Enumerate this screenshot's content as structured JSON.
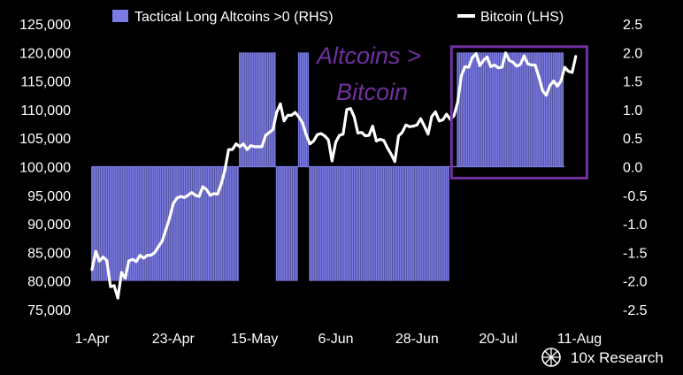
{
  "chart_data": {
    "type": "bar",
    "x_tick_labels": [
      "1-Apr",
      "23-Apr",
      "15-May",
      "6-Jun",
      "28-Jun",
      "20-Jul",
      "11-Aug"
    ],
    "x_range": [
      "2025-04-01",
      "2025-08-11"
    ],
    "y_left": {
      "ticks": [
        "125,000",
        "120,000",
        "115,000",
        "110,000",
        "105,000",
        "100,000",
        "95,000",
        "90,000",
        "85,000",
        "80,000",
        "75,000"
      ],
      "range": [
        75000,
        125000
      ]
    },
    "y_right": {
      "ticks": [
        "2.5",
        "2.0",
        "1.5",
        "1.0",
        "0.5",
        "0.0",
        "-0.5",
        "-1.0",
        "-1.5",
        "-2.0",
        "-2.5"
      ],
      "range": [
        -2.5,
        2.5
      ]
    },
    "legend_position": "top",
    "grid": false,
    "annotation": {
      "line1": "Altcoins >",
      "line2": "Bitcoin",
      "color": "#7030a0"
    },
    "series": [
      {
        "name": "Tactical Long Altcoins >0 (RHS)",
        "type": "bar",
        "axis": "right",
        "color": "#7b7be6",
        "segments": [
          {
            "start": "2025-04-01",
            "end": "2025-05-11",
            "value": -2.0
          },
          {
            "start": "2025-05-11",
            "end": "2025-05-21",
            "value": 2.0
          },
          {
            "start": "2025-05-21",
            "end": "2025-05-27",
            "value": -2.0
          },
          {
            "start": "2025-05-27",
            "end": "2025-05-30",
            "value": 2.0
          },
          {
            "start": "2025-05-30",
            "end": "2025-07-07",
            "value": -2.0
          },
          {
            "start": "2025-07-09",
            "end": "2025-08-07",
            "value": 2.0
          }
        ]
      },
      {
        "name": "Bitcoin (LHS)",
        "type": "line",
        "axis": "left",
        "color": "#ffffff",
        "points": [
          [
            "2025-04-01",
            82000
          ],
          [
            "2025-04-02",
            85200
          ],
          [
            "2025-04-03",
            83500
          ],
          [
            "2025-04-04",
            84200
          ],
          [
            "2025-04-05",
            83600
          ],
          [
            "2025-04-06",
            79000
          ],
          [
            "2025-04-07",
            79200
          ],
          [
            "2025-04-08",
            77000
          ],
          [
            "2025-04-09",
            81500
          ],
          [
            "2025-04-10",
            80500
          ],
          [
            "2025-04-11",
            83500
          ],
          [
            "2025-04-12",
            83800
          ],
          [
            "2025-04-13",
            83400
          ],
          [
            "2025-04-14",
            84500
          ],
          [
            "2025-04-15",
            84000
          ],
          [
            "2025-04-16",
            84500
          ],
          [
            "2025-04-17",
            84500
          ],
          [
            "2025-04-18",
            85000
          ],
          [
            "2025-04-19",
            86000
          ],
          [
            "2025-04-20",
            87000
          ],
          [
            "2025-04-21",
            89000
          ],
          [
            "2025-04-22",
            91000
          ],
          [
            "2025-04-23",
            93500
          ],
          [
            "2025-04-24",
            94500
          ],
          [
            "2025-04-25",
            94800
          ],
          [
            "2025-04-26",
            94600
          ],
          [
            "2025-04-27",
            95000
          ],
          [
            "2025-04-28",
            95500
          ],
          [
            "2025-04-29",
            95000
          ],
          [
            "2025-04-30",
            94800
          ],
          [
            "2025-05-01",
            96500
          ],
          [
            "2025-05-02",
            96000
          ],
          [
            "2025-05-03",
            95000
          ],
          [
            "2025-05-04",
            95300
          ],
          [
            "2025-05-05",
            95200
          ],
          [
            "2025-05-06",
            97000
          ],
          [
            "2025-05-07",
            99500
          ],
          [
            "2025-05-08",
            103000
          ],
          [
            "2025-05-09",
            103000
          ],
          [
            "2025-05-10",
            104000
          ],
          [
            "2025-05-11",
            103500
          ],
          [
            "2025-05-12",
            104000
          ],
          [
            "2025-05-13",
            103000
          ],
          [
            "2025-05-14",
            103700
          ],
          [
            "2025-05-15",
            103500
          ],
          [
            "2025-05-16",
            103500
          ],
          [
            "2025-05-17",
            103500
          ],
          [
            "2025-05-18",
            105500
          ],
          [
            "2025-05-19",
            106000
          ],
          [
            "2025-05-20",
            106500
          ],
          [
            "2025-05-21",
            109500
          ],
          [
            "2025-05-22",
            111000
          ],
          [
            "2025-05-23",
            108000
          ],
          [
            "2025-05-24",
            109000
          ],
          [
            "2025-05-25",
            109000
          ],
          [
            "2025-05-26",
            109500
          ],
          [
            "2025-05-27",
            108700
          ],
          [
            "2025-05-28",
            107700
          ],
          [
            "2025-05-29",
            105600
          ],
          [
            "2025-05-30",
            104000
          ],
          [
            "2025-05-31",
            104500
          ],
          [
            "2025-06-01",
            105600
          ],
          [
            "2025-06-02",
            105800
          ],
          [
            "2025-06-03",
            105400
          ],
          [
            "2025-06-04",
            104700
          ],
          [
            "2025-06-05",
            101000
          ],
          [
            "2025-06-06",
            104300
          ],
          [
            "2025-06-07",
            105500
          ],
          [
            "2025-06-08",
            105700
          ],
          [
            "2025-06-09",
            110000
          ],
          [
            "2025-06-10",
            110200
          ],
          [
            "2025-06-11",
            108700
          ],
          [
            "2025-06-12",
            105900
          ],
          [
            "2025-06-13",
            106000
          ],
          [
            "2025-06-14",
            105400
          ],
          [
            "2025-06-15",
            105500
          ],
          [
            "2025-06-16",
            107100
          ],
          [
            "2025-06-17",
            104500
          ],
          [
            "2025-06-18",
            104800
          ],
          [
            "2025-06-19",
            104600
          ],
          [
            "2025-06-20",
            103300
          ],
          [
            "2025-06-21",
            102200
          ],
          [
            "2025-06-22",
            100900
          ],
          [
            "2025-06-23",
            105400
          ],
          [
            "2025-06-24",
            106000
          ],
          [
            "2025-06-25",
            107300
          ],
          [
            "2025-06-26",
            107000
          ],
          [
            "2025-06-27",
            107100
          ],
          [
            "2025-06-28",
            107300
          ],
          [
            "2025-06-29",
            108400
          ],
          [
            "2025-06-30",
            107100
          ],
          [
            "2025-07-01",
            105700
          ],
          [
            "2025-07-02",
            108800
          ],
          [
            "2025-07-03",
            109600
          ],
          [
            "2025-07-04",
            108000
          ],
          [
            "2025-07-05",
            108200
          ],
          [
            "2025-07-06",
            109200
          ],
          [
            "2025-07-07",
            108300
          ],
          [
            "2025-07-08",
            108900
          ],
          [
            "2025-07-09",
            111300
          ],
          [
            "2025-07-10",
            115900
          ],
          [
            "2025-07-11",
            117500
          ],
          [
            "2025-07-12",
            117400
          ],
          [
            "2025-07-13",
            119100
          ],
          [
            "2025-07-14",
            119800
          ],
          [
            "2025-07-15",
            117700
          ],
          [
            "2025-07-16",
            118600
          ],
          [
            "2025-07-17",
            119200
          ],
          [
            "2025-07-18",
            117500
          ],
          [
            "2025-07-19",
            117800
          ],
          [
            "2025-07-20",
            117300
          ],
          [
            "2025-07-21",
            117400
          ],
          [
            "2025-07-22",
            119900
          ],
          [
            "2025-07-23",
            118600
          ],
          [
            "2025-07-24",
            118300
          ],
          [
            "2025-07-25",
            117600
          ],
          [
            "2025-07-26",
            117900
          ],
          [
            "2025-07-27",
            119400
          ],
          [
            "2025-07-28",
            118000
          ],
          [
            "2025-07-29",
            117800
          ],
          [
            "2025-07-30",
            117800
          ],
          [
            "2025-07-31",
            115700
          ],
          [
            "2025-08-01",
            113300
          ],
          [
            "2025-08-02",
            112500
          ],
          [
            "2025-08-03",
            114200
          ],
          [
            "2025-08-04",
            115000
          ],
          [
            "2025-08-05",
            114100
          ],
          [
            "2025-08-06",
            115000
          ],
          [
            "2025-08-07",
            117400
          ],
          [
            "2025-08-08",
            116700
          ],
          [
            "2025-08-09",
            116500
          ],
          [
            "2025-08-10",
            119300
          ]
        ]
      }
    ]
  },
  "branding": {
    "label": "10x Research"
  }
}
